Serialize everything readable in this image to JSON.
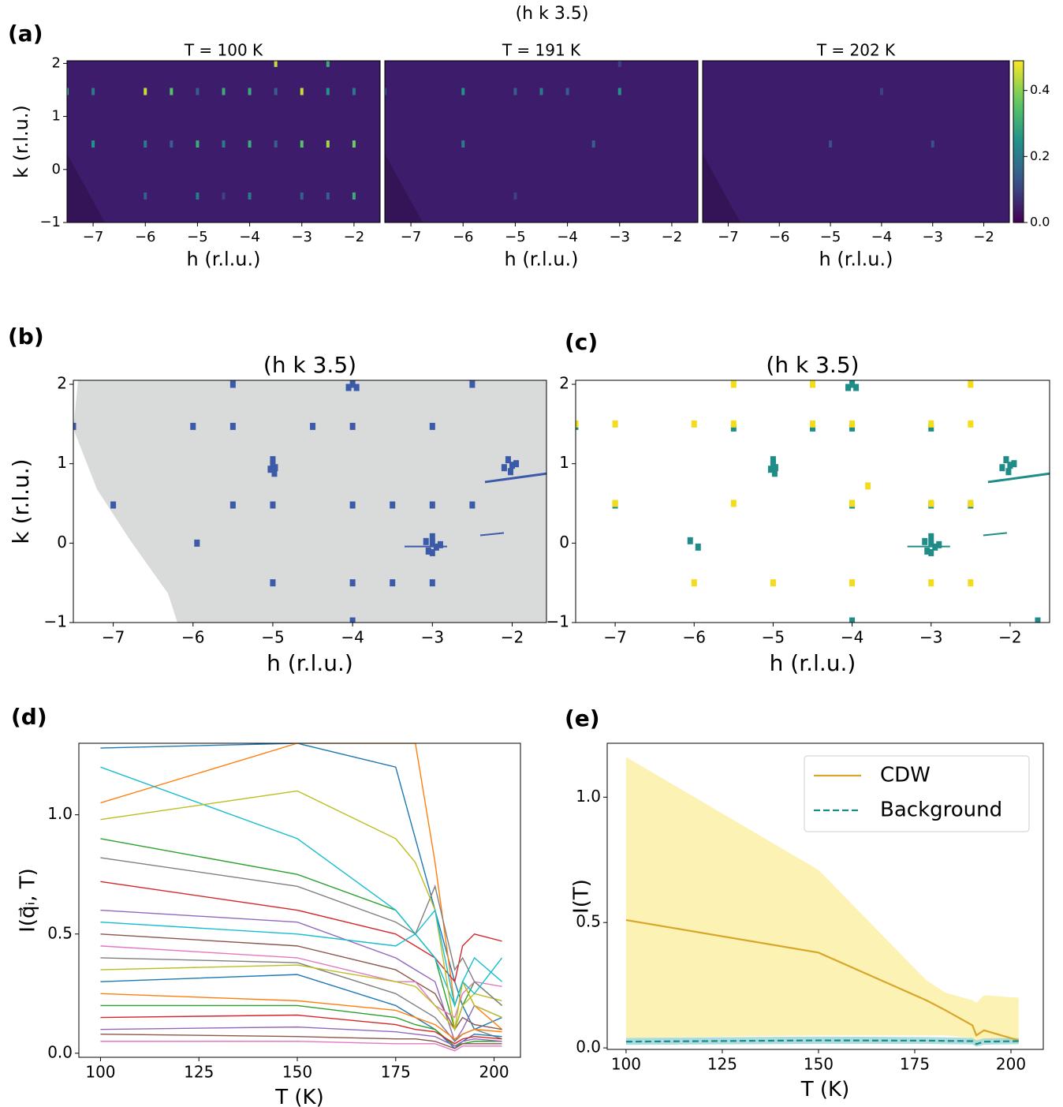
{
  "figure": {
    "title": "(h k 3.5)",
    "panel_labels": [
      "(a)",
      "(b)",
      "(c)",
      "(d)",
      "(e)"
    ]
  },
  "chart_data": [
    {
      "type": "heatmap",
      "title": "T = 100 K",
      "xlabel": "h (r.l.u.)",
      "ylabel": "k (r.l.u.)",
      "xlim": [
        -7.5,
        -1.5
      ],
      "ylim": [
        -1,
        2.05
      ],
      "xticks": [
        {
          "value": -7,
          "label": "−7"
        },
        {
          "value": -6,
          "label": "−6"
        },
        {
          "value": -5,
          "label": "−5"
        },
        {
          "value": -4,
          "label": "−4"
        },
        {
          "value": -3,
          "label": "−3"
        },
        {
          "value": -2,
          "label": "−2"
        }
      ],
      "yticks": [
        {
          "value": -1,
          "label": "−1"
        },
        0,
        1,
        2
      ],
      "colormap": "viridis",
      "clim": [
        0,
        0.49
      ],
      "h": [
        -7.5,
        -7,
        -6,
        -5.5,
        -5,
        -4.5,
        -4,
        -3.5,
        -3,
        -2.5,
        -2,
        -7,
        -6,
        -5.5,
        -5,
        -4.5,
        -4,
        -3.5,
        -3,
        -2.5,
        -2,
        -6,
        -5,
        -4.5,
        -4,
        -3,
        -2.5,
        -2,
        -3.5,
        -2.5
      ],
      "k": [
        1.47,
        1.47,
        1.47,
        1.47,
        1.47,
        1.47,
        1.47,
        1.47,
        1.47,
        1.47,
        1.47,
        0.48,
        0.48,
        0.48,
        0.48,
        0.48,
        0.48,
        0.48,
        0.48,
        0.48,
        0.48,
        -0.5,
        -0.5,
        -0.5,
        -0.5,
        -0.5,
        -0.5,
        -0.5,
        2,
        2
      ],
      "values": [
        0.3,
        0.2,
        0.45,
        0.35,
        0.15,
        0.3,
        0.3,
        0.15,
        0.45,
        0.25,
        0.2,
        0.25,
        0.2,
        0.15,
        0.3,
        0.2,
        0.3,
        0.15,
        0.35,
        0.42,
        0.38,
        0.15,
        0.2,
        0.1,
        0.2,
        0.15,
        0.15,
        0.3,
        0.45,
        0.3
      ]
    },
    {
      "type": "heatmap",
      "title": "T = 191 K",
      "xlabel": "h (r.l.u.)",
      "xlim": [
        -7.5,
        -1.5
      ],
      "ylim": [
        -1,
        2.05
      ],
      "xticks": [
        {
          "value": -7,
          "label": "−7"
        },
        {
          "value": -6,
          "label": "−6"
        },
        {
          "value": -5,
          "label": "−5"
        },
        {
          "value": -4,
          "label": "−4"
        },
        {
          "value": -3,
          "label": "−3"
        },
        {
          "value": -2,
          "label": "−2"
        }
      ],
      "colormap": "viridis",
      "clim": [
        0,
        0.49
      ],
      "h": [
        -7.5,
        -6,
        -5,
        -4.5,
        -4,
        -3,
        -6,
        -3.5,
        -5,
        -3
      ],
      "k": [
        1.47,
        1.47,
        1.47,
        1.47,
        1.47,
        1.47,
        0.48,
        0.48,
        -0.5,
        2
      ],
      "values": [
        0.15,
        0.25,
        0.15,
        0.2,
        0.15,
        0.25,
        0.2,
        0.15,
        0.1,
        0.1
      ]
    },
    {
      "type": "heatmap",
      "title": "T = 202 K",
      "xlabel": "h (r.l.u.)",
      "xlim": [
        -7.5,
        -1.5
      ],
      "ylim": [
        -1,
        2.05
      ],
      "xticks": [
        {
          "value": -7,
          "label": "−7"
        },
        {
          "value": -6,
          "label": "−6"
        },
        {
          "value": -5,
          "label": "−5"
        },
        {
          "value": -4,
          "label": "−4"
        },
        {
          "value": -3,
          "label": "−3"
        },
        {
          "value": -2,
          "label": "−2"
        }
      ],
      "colormap": "viridis",
      "clim": [
        0,
        0.49
      ],
      "h": [
        -5,
        -3,
        -4
      ],
      "k": [
        0.48,
        0.48,
        1.47
      ],
      "values": [
        0.12,
        0.12,
        0.1
      ]
    },
    {
      "type": "colorbar",
      "colormap": "viridis",
      "ylim": [
        0,
        0.49
      ],
      "yticks": [
        {
          "value": 0,
          "label": "0.0"
        },
        {
          "value": 0.2,
          "label": "0.2"
        },
        {
          "value": 0.4,
          "label": "0.4"
        }
      ]
    },
    {
      "type": "scatter",
      "title": "(h k 3.5)",
      "xlabel": "h (r.l.u.)",
      "ylabel": "k (r.l.u.)",
      "xlim": [
        -7.5,
        -1.57
      ],
      "ylim": [
        -1,
        2.05
      ],
      "mask_color": "#d9dbdb",
      "xticks": [
        {
          "value": -7,
          "label": "−7"
        },
        {
          "value": -6,
          "label": "−6"
        },
        {
          "value": -5,
          "label": "−5"
        },
        {
          "value": -4,
          "label": "−4"
        },
        {
          "value": -3,
          "label": "−3"
        },
        {
          "value": -2,
          "label": "−2"
        }
      ],
      "yticks": [
        {
          "value": -1,
          "label": "−1"
        },
        0,
        1,
        2
      ],
      "series": [
        {
          "color": "#3b5ba9",
          "x": [
            -7.5,
            -6,
            -5.5,
            -4.5,
            -4,
            -3,
            -7,
            -5.5,
            -5,
            -4,
            -3.5,
            -3,
            -2.5,
            -5,
            -4,
            -3.5,
            -3,
            -4,
            -4.05,
            -3.95,
            -5.5,
            -2.5,
            -5,
            -4.97,
            -5.03,
            -4.98,
            -5.0,
            -2.05,
            -2.0,
            -2.1,
            -2.02,
            -1.95,
            -3,
            -2.95,
            -3.05,
            -3,
            -2.9,
            -3.08,
            -3,
            -4,
            -5.95
          ],
          "y": [
            1.47,
            1.47,
            1.47,
            1.47,
            1.47,
            1.47,
            0.48,
            0.48,
            0.48,
            0.48,
            0.48,
            0.48,
            0.48,
            -0.5,
            -0.5,
            -0.5,
            -0.5,
            2.0,
            1.96,
            1.96,
            2.0,
            2.0,
            1.0,
            0.95,
            0.93,
            0.88,
            1.05,
            1.05,
            0.98,
            0.95,
            0.9,
            1.0,
            0.0,
            -0.05,
            -0.1,
            0.08,
            -0.02,
            0.02,
            -0.12,
            -0.98,
            0.0
          ]
        }
      ]
    },
    {
      "type": "scatter",
      "title": "(h k 3.5)",
      "xlabel": "h (r.l.u.)",
      "xlim": [
        -7.5,
        -1.5
      ],
      "ylim": [
        -1,
        2.05
      ],
      "xticks": [
        {
          "value": -7,
          "label": "−7"
        },
        {
          "value": -6,
          "label": "−6"
        },
        {
          "value": -5,
          "label": "−5"
        },
        {
          "value": -4,
          "label": "−4"
        },
        {
          "value": -3,
          "label": "−3"
        },
        {
          "value": -2,
          "label": "−2"
        }
      ],
      "yticks": [
        {
          "value": -1,
          "label": "−1"
        },
        0,
        1,
        2
      ],
      "series": [
        {
          "color": "#1f8c88",
          "x": [
            -4,
            -4.05,
            -3.95,
            -5,
            -4.97,
            -5.03,
            -4.98,
            -5.0,
            -2.05,
            -2.0,
            -2.1,
            -2.02,
            -1.95,
            -3,
            -2.95,
            -3.05,
            -3,
            -2.9,
            -3.08,
            -3,
            -6.05,
            -5.95,
            -4,
            -1.65,
            -7.5,
            -5.5,
            -4.5,
            -4,
            -3,
            -7,
            -4,
            -3,
            -2.5
          ],
          "y": [
            2.0,
            1.96,
            1.96,
            1.0,
            0.95,
            0.93,
            0.88,
            1.05,
            1.05,
            0.98,
            0.95,
            0.9,
            1.0,
            0.0,
            -0.05,
            -0.1,
            0.08,
            -0.02,
            0.02,
            -0.12,
            0.03,
            -0.05,
            -0.98,
            -0.98,
            1.47,
            1.45,
            1.45,
            1.45,
            1.45,
            0.48,
            0.48,
            0.48,
            0.48
          ]
        },
        {
          "color": "#f2dc1c",
          "x": [
            -7.5,
            -7,
            -6,
            -5.5,
            -4.5,
            -4,
            -3,
            -2.5,
            -7,
            -5.5,
            -4,
            -3,
            -2.5,
            -6,
            -5,
            -4,
            -3,
            -2.5,
            -5.5,
            -4.5,
            -2.5,
            -3.8
          ],
          "y": [
            1.5,
            1.5,
            1.5,
            1.5,
            1.5,
            1.5,
            1.5,
            1.5,
            0.5,
            0.5,
            0.5,
            0.5,
            0.5,
            -0.5,
            -0.5,
            -0.5,
            -0.5,
            -0.5,
            2.0,
            2.0,
            2.0,
            0.72
          ]
        }
      ]
    },
    {
      "type": "line",
      "xlabel": "T (K)",
      "ylabel": "I(q⃗ᵢ, T)",
      "xlim": [
        94.5,
        206.7
      ],
      "ylim": [
        -0.017,
        1.3
      ],
      "xticks": [
        100,
        125,
        150,
        175,
        200
      ],
      "yticks": [
        {
          "value": 0,
          "label": "0.0"
        },
        {
          "value": 0.5,
          "label": "0.5"
        },
        {
          "value": 1,
          "label": "1.0"
        }
      ],
      "x": [
        100,
        150,
        175,
        180,
        185,
        190,
        192,
        195,
        202
      ],
      "series": [
        {
          "color": "#1f77b4",
          "values": [
            1.28,
            1.3,
            1.2,
            0.9,
            0.6,
            0.3,
            0.2,
            0.1,
            0.15
          ]
        },
        {
          "color": "#ff7f0e",
          "values": [
            1.05,
            1.3,
            1.3,
            1.3,
            0.8,
            0.2,
            0.3,
            0.2,
            0.1
          ]
        },
        {
          "color": "#2ca02c",
          "values": [
            0.9,
            0.75,
            0.6,
            0.5,
            0.4,
            0.1,
            0.2,
            0.3,
            0.2
          ]
        },
        {
          "color": "#d62728",
          "values": [
            0.72,
            0.6,
            0.5,
            0.45,
            0.4,
            0.3,
            0.45,
            0.5,
            0.47
          ]
        },
        {
          "color": "#9467bd",
          "values": [
            0.6,
            0.55,
            0.4,
            0.35,
            0.3,
            0.05,
            0.1,
            0.2,
            0.15
          ]
        },
        {
          "color": "#8c564b",
          "values": [
            0.5,
            0.45,
            0.35,
            0.3,
            0.25,
            0.1,
            0.15,
            0.12,
            0.1
          ]
        },
        {
          "color": "#e377c2",
          "values": [
            0.45,
            0.4,
            0.3,
            0.3,
            0.2,
            0.15,
            0.25,
            0.3,
            0.28
          ]
        },
        {
          "color": "#7f7f7f",
          "values": [
            0.4,
            0.38,
            0.25,
            0.2,
            0.15,
            0.05,
            0.08,
            0.1,
            0.06
          ]
        },
        {
          "color": "#bcbd22",
          "values": [
            0.35,
            0.37,
            0.3,
            0.28,
            0.2,
            0.1,
            0.2,
            0.25,
            0.22
          ]
        },
        {
          "color": "#17becf",
          "values": [
            1.2,
            0.9,
            0.6,
            0.5,
            0.4,
            0.2,
            0.3,
            0.4,
            0.3
          ]
        },
        {
          "color": "#1f77b4",
          "values": [
            0.3,
            0.33,
            0.2,
            0.15,
            0.1,
            0.02,
            0.05,
            0.08,
            0.07
          ]
        },
        {
          "color": "#ff7f0e",
          "values": [
            0.25,
            0.22,
            0.18,
            0.15,
            0.12,
            0.06,
            0.08,
            0.1,
            0.09
          ]
        },
        {
          "color": "#2ca02c",
          "values": [
            0.2,
            0.2,
            0.15,
            0.12,
            0.1,
            0.03,
            0.04,
            0.05,
            0.05
          ]
        },
        {
          "color": "#d62728",
          "values": [
            0.15,
            0.16,
            0.12,
            0.1,
            0.09,
            0.04,
            0.06,
            0.07,
            0.06
          ]
        },
        {
          "color": "#9467bd",
          "values": [
            0.1,
            0.11,
            0.09,
            0.08,
            0.07,
            0.03,
            0.05,
            0.06,
            0.05
          ]
        },
        {
          "color": "#8c564b",
          "values": [
            0.08,
            0.07,
            0.06,
            0.06,
            0.05,
            0.02,
            0.04,
            0.04,
            0.04
          ]
        },
        {
          "color": "#e377c2",
          "values": [
            0.05,
            0.05,
            0.04,
            0.04,
            0.04,
            0.01,
            0.03,
            0.03,
            0.03
          ]
        },
        {
          "color": "#7f7f7f",
          "values": [
            0.82,
            0.7,
            0.55,
            0.5,
            0.7,
            0.35,
            0.4,
            0.3,
            0.2
          ]
        },
        {
          "color": "#bcbd22",
          "values": [
            0.98,
            1.1,
            0.9,
            0.8,
            0.6,
            0.1,
            0.3,
            0.2,
            0.15
          ]
        },
        {
          "color": "#17becf",
          "values": [
            0.55,
            0.5,
            0.45,
            0.5,
            0.6,
            0.2,
            0.3,
            0.25,
            0.4
          ]
        }
      ]
    },
    {
      "type": "band",
      "xlabel": "T (K)",
      "ylabel": "I(T)",
      "xlim": [
        95.1,
        208.4
      ],
      "ylim": [
        -0.006,
        1.215
      ],
      "legend": "upper right",
      "xticks": [
        100,
        125,
        150,
        175,
        200
      ],
      "yticks": [
        {
          "value": 0,
          "label": "0.0"
        },
        {
          "value": 0.5,
          "label": "0.5"
        },
        {
          "value": 1,
          "label": "1.0"
        }
      ],
      "x": [
        100,
        150,
        178,
        183,
        190,
        191,
        193,
        202
      ],
      "series": [
        {
          "name": "CDW",
          "color": "#daa52b",
          "band_color": "#fbf0a6",
          "linestyle": "solid",
          "values": [
            0.51,
            0.38,
            0.19,
            0.15,
            0.09,
            0.05,
            0.07,
            0.03
          ],
          "lower": [
            0.04,
            0.05,
            0.05,
            0.05,
            0.04,
            0.02,
            0.03,
            0.03
          ],
          "upper": [
            1.16,
            0.71,
            0.27,
            0.22,
            0.19,
            0.18,
            0.21,
            0.2
          ]
        },
        {
          "name": "Background",
          "color": "#1b8a8c",
          "band_color": "#9fd6d6",
          "linestyle": "dashed",
          "values": [
            0.025,
            0.03,
            0.029,
            0.028,
            0.027,
            0.015,
            0.025,
            0.027
          ],
          "lower": [
            0.012,
            0.016,
            0.016,
            0.015,
            0.014,
            0.005,
            0.013,
            0.015
          ],
          "upper": [
            0.04,
            0.045,
            0.043,
            0.042,
            0.04,
            0.03,
            0.038,
            0.04
          ]
        }
      ]
    }
  ]
}
